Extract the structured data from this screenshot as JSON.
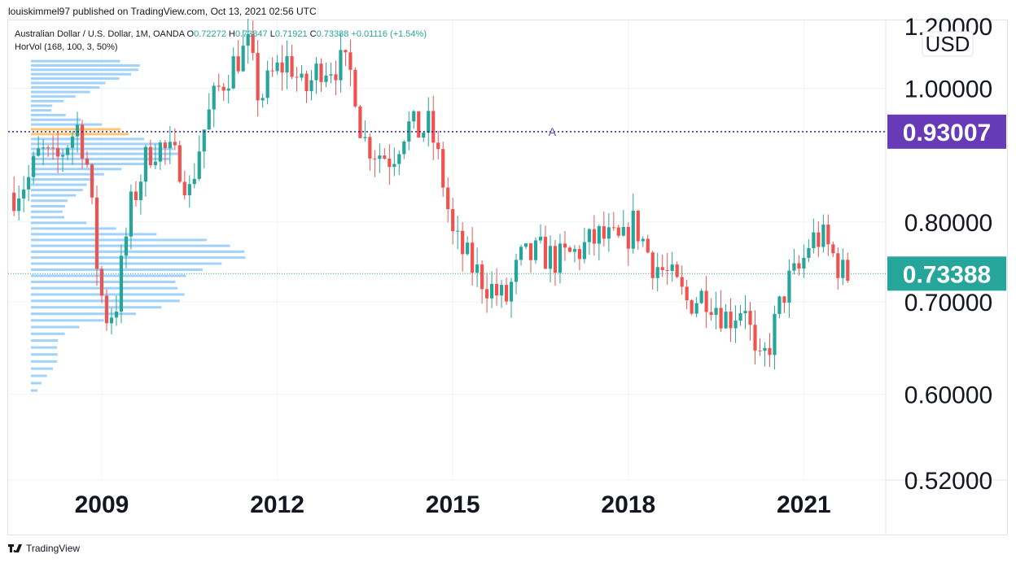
{
  "header": {
    "publish_text": "louiskimmel97 published on TradingView.com, Oct 13, 2021 02:56 UTC"
  },
  "legend": {
    "symbol_text": "Australian Dollar / U.S. Dollar, 1M, OANDA",
    "open_label": "O",
    "open_value": "0.72272",
    "high_label": "H",
    "high_value": "0.73847",
    "low_label": "L",
    "low_value": "0.71921",
    "close_label": "C",
    "close_value": "0.73388",
    "change_value": "+0.01116 (+1.54%)",
    "indicator_text": "HorVol (168, 100, 3, 50%)"
  },
  "footer": {
    "brand": "TradingView"
  },
  "colors": {
    "up": "#26a69a",
    "down": "#ef5350",
    "volume_profile": "#90caf9",
    "poc": "#ffb74d",
    "hline": "#311b92",
    "hline_badge": "#673ab7",
    "last_badge": "#26a69a",
    "grid": "#f0f3fa"
  },
  "chart_data": {
    "type": "candlestick",
    "symbol": "Australian Dollar / U.S. Dollar",
    "interval": "1M",
    "currency": "USD",
    "y_axis": {
      "ticks": [
        "1.00000",
        "0.80000",
        "0.70000",
        "0.60000",
        "0.52000"
      ],
      "top_partial_tick": "1.20000",
      "range": [
        0.52,
        1.12
      ]
    },
    "x_axis": {
      "ticks": [
        "2009",
        "2012",
        "2015",
        "2018",
        "2021"
      ],
      "range": [
        2007.4,
        2022.4
      ]
    },
    "horizontal_line": {
      "value": 0.93007,
      "label": "0.93007",
      "marker_letter": "A",
      "marker_x": 2016.7
    },
    "last_price": {
      "value": 0.73388,
      "label": "0.73388"
    },
    "anchors": [
      [
        2007.5,
        0.84
      ],
      [
        2007.75,
        0.86
      ],
      [
        2007.95,
        0.9
      ],
      [
        2008.2,
        0.88
      ],
      [
        2008.45,
        0.92
      ],
      [
        2008.6,
        0.94
      ],
      [
        2008.75,
        0.88
      ],
      [
        2008.95,
        0.72
      ],
      [
        2009.1,
        0.68
      ],
      [
        2009.25,
        0.7
      ],
      [
        2009.5,
        0.82
      ],
      [
        2009.8,
        0.9
      ],
      [
        2009.95,
        0.91
      ],
      [
        2010.35,
        0.88
      ],
      [
        2010.5,
        0.84
      ],
      [
        2010.7,
        0.92
      ],
      [
        2010.95,
        0.99
      ],
      [
        2011.3,
        1.05
      ],
      [
        2011.5,
        1.07
      ],
      [
        2011.7,
        0.98
      ],
      [
        2011.9,
        1.02
      ],
      [
        2012.2,
        1.05
      ],
      [
        2012.45,
        0.99
      ],
      [
        2012.75,
        1.04
      ],
      [
        2013.1,
        1.04
      ],
      [
        2013.3,
        1.02
      ],
      [
        2013.45,
        0.92
      ],
      [
        2013.7,
        0.9
      ],
      [
        2013.95,
        0.89
      ],
      [
        2014.2,
        0.94
      ],
      [
        2014.45,
        0.93
      ],
      [
        2014.6,
        0.94
      ],
      [
        2014.8,
        0.87
      ],
      [
        2015.0,
        0.78
      ],
      [
        2015.35,
        0.74
      ],
      [
        2015.6,
        0.72
      ],
      [
        2015.9,
        0.7
      ],
      [
        2016.15,
        0.75
      ],
      [
        2016.5,
        0.76
      ],
      [
        2016.8,
        0.75
      ],
      [
        2017.1,
        0.76
      ],
      [
        2017.5,
        0.78
      ],
      [
        2017.9,
        0.77
      ],
      [
        2018.1,
        0.8
      ],
      [
        2018.4,
        0.75
      ],
      [
        2018.7,
        0.73
      ],
      [
        2019.0,
        0.7
      ],
      [
        2019.35,
        0.71
      ],
      [
        2019.7,
        0.68
      ],
      [
        2020.0,
        0.7
      ],
      [
        2020.2,
        0.62
      ],
      [
        2020.4,
        0.65
      ],
      [
        2020.7,
        0.72
      ],
      [
        2020.95,
        0.74
      ],
      [
        2021.1,
        0.775
      ],
      [
        2021.3,
        0.78
      ],
      [
        2021.55,
        0.75
      ],
      [
        2021.7,
        0.73
      ],
      [
        2021.8,
        0.734
      ]
    ],
    "volume_profile": {
      "price_range": [
        0.6,
        1.05
      ],
      "rows": 60,
      "poc_price": 0.93
    }
  }
}
